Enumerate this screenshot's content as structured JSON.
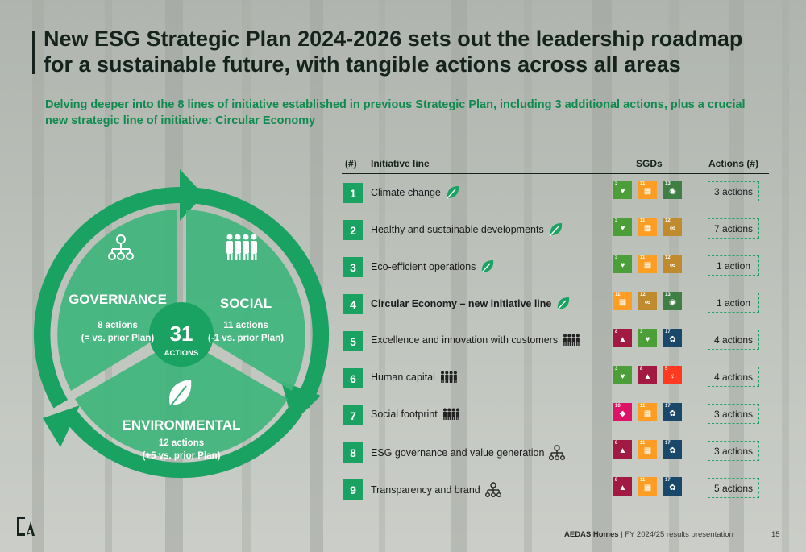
{
  "title": "New ESG Strategic Plan 2024-2026 sets out the leadership roadmap for a sustainable future, with tangible actions across all areas",
  "subtitle": "Delving deeper into the 8 lines of initiative established in previous Strategic Plan, including 3 additional actions, plus a crucial new strategic line of initiative: Circular Economy",
  "wheel": {
    "governance": {
      "title": "GOVERNANCE",
      "actions": "8 actions",
      "delta": "(= vs. prior Plan)",
      "icon": "org-chart-icon"
    },
    "social": {
      "title": "SOCIAL",
      "actions": "11 actions",
      "delta": "(-1 vs. prior Plan)",
      "icon": "people-icon"
    },
    "environmental": {
      "title": "ENVIRONMENTAL",
      "actions": "12 actions",
      "delta": "(+5 vs. prior Plan)",
      "icon": "leaf-icon"
    },
    "center_number": "31",
    "center_label": "ACTIONS",
    "colors": {
      "dark": "#1aa262",
      "light": "#3fb57c"
    }
  },
  "table": {
    "headers": {
      "num": "(#)",
      "line": "Initiative line",
      "sgds": "SGDs",
      "actions": "Actions (#)"
    },
    "rows": [
      {
        "num": "1",
        "label": "Climate change",
        "icon": "leaf-icon",
        "bold": false,
        "sgds": [
          "3",
          "11",
          "13"
        ],
        "actions": "3 actions"
      },
      {
        "num": "2",
        "label": "Healthy and sustainable developments",
        "icon": "leaf-icon",
        "bold": false,
        "sgds": [
          "3",
          "11",
          "12"
        ],
        "actions": "7 actions"
      },
      {
        "num": "3",
        "label": "Eco-efficient operations",
        "icon": "leaf-icon",
        "bold": false,
        "sgds": [
          "3",
          "11",
          "12"
        ],
        "actions": "1 action"
      },
      {
        "num": "4",
        "label": "Circular Economy – new initiative line",
        "icon": "leaf-icon",
        "bold": true,
        "sgds": [
          "11",
          "12",
          "13"
        ],
        "actions": "1 action"
      },
      {
        "num": "5",
        "label": "Excellence and innovation with customers",
        "icon": "people-icon",
        "bold": false,
        "sgds": [
          "8",
          "3",
          "17"
        ],
        "actions": "4 actions"
      },
      {
        "num": "6",
        "label": "Human capital",
        "icon": "people-icon",
        "bold": false,
        "sgds": [
          "3",
          "8",
          "5"
        ],
        "actions": "4 actions"
      },
      {
        "num": "7",
        "label": "Social footprint",
        "icon": "people-icon",
        "bold": false,
        "sgds": [
          "10",
          "11",
          "17"
        ],
        "actions": "3 actions"
      },
      {
        "num": "8",
        "label": "ESG governance and value generation",
        "icon": "org-chart-icon",
        "bold": false,
        "sgds": [
          "8",
          "11",
          "17"
        ],
        "actions": "3 actions"
      },
      {
        "num": "9",
        "label": "Transparency and brand",
        "icon": "org-chart-icon",
        "bold": false,
        "sgds": [
          "8",
          "11",
          "17"
        ],
        "actions": "5 actions"
      }
    ]
  },
  "sgd_colors": {
    "3": "#4c9f38",
    "5": "#ff3a21",
    "8": "#a21942",
    "10": "#dd1367",
    "11": "#fd9d24",
    "12": "#bf8b2e",
    "13": "#3f7e44",
    "17": "#19486a"
  },
  "footer": {
    "company": "AEDAS Homes",
    "text": " | FY 2024/25 results presentation",
    "page": "15"
  }
}
